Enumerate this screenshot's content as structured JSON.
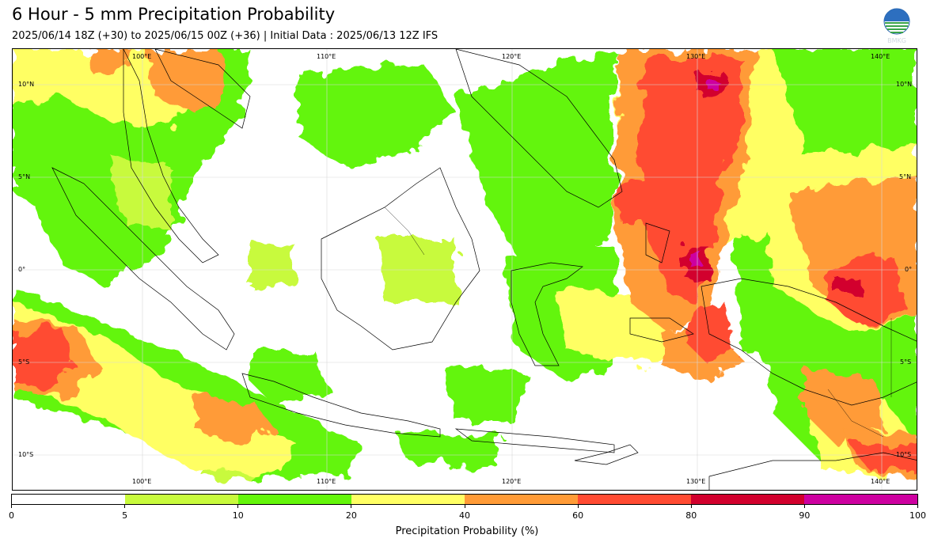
{
  "header": {
    "title": "6 Hour - 5 mm Precipitation Probability",
    "subtitle": "2025/06/14 18Z (+30) to 2025/06/15 00Z (+36) | Initial Data : 2025/06/13 12Z IFS",
    "logo_text": "BMKG"
  },
  "map": {
    "lon_labels_top": [
      "100°E",
      "110°E",
      "120°E",
      "130°E",
      "140°E"
    ],
    "lon_labels_bottom": [
      "100°E",
      "110°E",
      "120°E",
      "130°E",
      "140°E"
    ],
    "lat_labels_left": [
      "10°N",
      "5°N",
      "0°",
      "5°S",
      "10°S"
    ],
    "lat_labels_right": [
      "10°N",
      "5°N",
      "0°",
      "5°S",
      "10°S"
    ]
  },
  "colorbar": {
    "title": "Precipitation Probability (%)",
    "bins": [
      {
        "from": 0,
        "to": 5,
        "color": "#ffffff"
      },
      {
        "from": 5,
        "to": 10,
        "color": "#c8fa3c"
      },
      {
        "from": 10,
        "to": 20,
        "color": "#64f50a"
      },
      {
        "from": 20,
        "to": 40,
        "color": "#ffff64"
      },
      {
        "from": 40,
        "to": 60,
        "color": "#ff9b37"
      },
      {
        "from": 60,
        "to": 80,
        "color": "#ff4b32"
      },
      {
        "from": 80,
        "to": 90,
        "color": "#d2002d"
      },
      {
        "from": 90,
        "to": 100,
        "color": "#cd00a0"
      }
    ],
    "tick_labels": [
      "0",
      "5",
      "10",
      "20",
      "40",
      "60",
      "80",
      "90",
      "100"
    ]
  }
}
